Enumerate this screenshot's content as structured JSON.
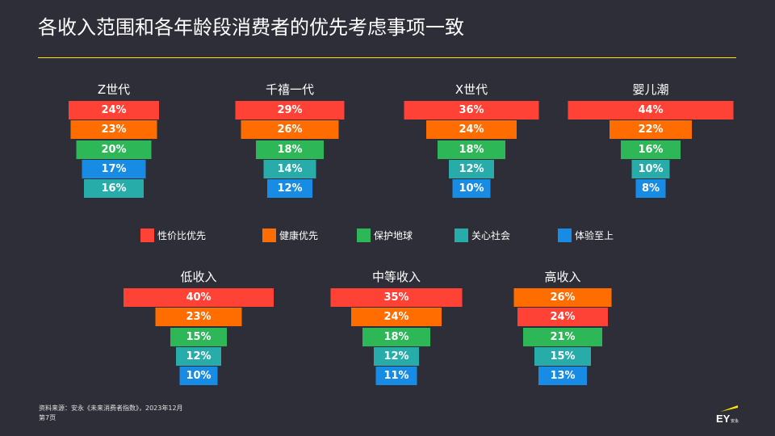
{
  "page": {
    "title": "各收入范围和各年龄段消费者的优先考虑事项一致",
    "source": "资料来源：安永《未来消费者指数》，2023年12月",
    "page_number": "第7页",
    "logo": {
      "text": "EY",
      "sub": "安永"
    }
  },
  "colors": {
    "accent_line": "#ffe600",
    "background": "#2e2e38"
  },
  "legend": [
    {
      "label": "性价比优先",
      "color": "#ff4136"
    },
    {
      "label": "健康优先",
      "color": "#ff6d00"
    },
    {
      "label": "保护地球",
      "color": "#2db757"
    },
    {
      "label": "关心社会",
      "color": "#27acaa"
    },
    {
      "label": "体验至上",
      "color": "#188ce5"
    }
  ],
  "chart_data": [
    {
      "type": "bar",
      "title": "Z世代",
      "bars": [
        {
          "value": 24,
          "label": "24%",
          "color": "#ff4136"
        },
        {
          "value": 23,
          "label": "23%",
          "color": "#ff6d00"
        },
        {
          "value": 20,
          "label": "20%",
          "color": "#2db757"
        },
        {
          "value": 17,
          "label": "17%",
          "color": "#188ce5"
        },
        {
          "value": 16,
          "label": "16%",
          "color": "#27acaa"
        }
      ]
    },
    {
      "type": "bar",
      "title": "千禧一代",
      "bars": [
        {
          "value": 29,
          "label": "29%",
          "color": "#ff4136"
        },
        {
          "value": 26,
          "label": "26%",
          "color": "#ff6d00"
        },
        {
          "value": 18,
          "label": "18%",
          "color": "#2db757"
        },
        {
          "value": 14,
          "label": "14%",
          "color": "#27acaa"
        },
        {
          "value": 12,
          "label": "12%",
          "color": "#188ce5"
        }
      ]
    },
    {
      "type": "bar",
      "title": "X世代",
      "bars": [
        {
          "value": 36,
          "label": "36%",
          "color": "#ff4136"
        },
        {
          "value": 24,
          "label": "24%",
          "color": "#ff6d00"
        },
        {
          "value": 18,
          "label": "18%",
          "color": "#2db757"
        },
        {
          "value": 12,
          "label": "12%",
          "color": "#27acaa"
        },
        {
          "value": 10,
          "label": "10%",
          "color": "#188ce5"
        }
      ]
    },
    {
      "type": "bar",
      "title": "婴儿潮",
      "bars": [
        {
          "value": 44,
          "label": "44%",
          "color": "#ff4136"
        },
        {
          "value": 22,
          "label": "22%",
          "color": "#ff6d00"
        },
        {
          "value": 16,
          "label": "16%",
          "color": "#2db757"
        },
        {
          "value": 10,
          "label": "10%",
          "color": "#27acaa"
        },
        {
          "value": 8,
          "label": "8%",
          "color": "#188ce5"
        }
      ]
    },
    {
      "type": "bar",
      "title": "低收入",
      "bars": [
        {
          "value": 40,
          "label": "40%",
          "color": "#ff4136"
        },
        {
          "value": 23,
          "label": "23%",
          "color": "#ff6d00"
        },
        {
          "value": 15,
          "label": "15%",
          "color": "#2db757"
        },
        {
          "value": 12,
          "label": "12%",
          "color": "#27acaa"
        },
        {
          "value": 10,
          "label": "10%",
          "color": "#188ce5"
        }
      ]
    },
    {
      "type": "bar",
      "title": "中等收入",
      "bars": [
        {
          "value": 35,
          "label": "35%",
          "color": "#ff4136"
        },
        {
          "value": 24,
          "label": "24%",
          "color": "#ff6d00"
        },
        {
          "value": 18,
          "label": "18%",
          "color": "#2db757"
        },
        {
          "value": 12,
          "label": "12%",
          "color": "#27acaa"
        },
        {
          "value": 11,
          "label": "11%",
          "color": "#188ce5"
        }
      ]
    },
    {
      "type": "bar",
      "title": "高收入",
      "bars": [
        {
          "value": 26,
          "label": "26%",
          "color": "#ff6d00"
        },
        {
          "value": 24,
          "label": "24%",
          "color": "#ff4136"
        },
        {
          "value": 21,
          "label": "21%",
          "color": "#2db757"
        },
        {
          "value": 15,
          "label": "15%",
          "color": "#27acaa"
        },
        {
          "value": 13,
          "label": "13%",
          "color": "#188ce5"
        }
      ]
    }
  ]
}
